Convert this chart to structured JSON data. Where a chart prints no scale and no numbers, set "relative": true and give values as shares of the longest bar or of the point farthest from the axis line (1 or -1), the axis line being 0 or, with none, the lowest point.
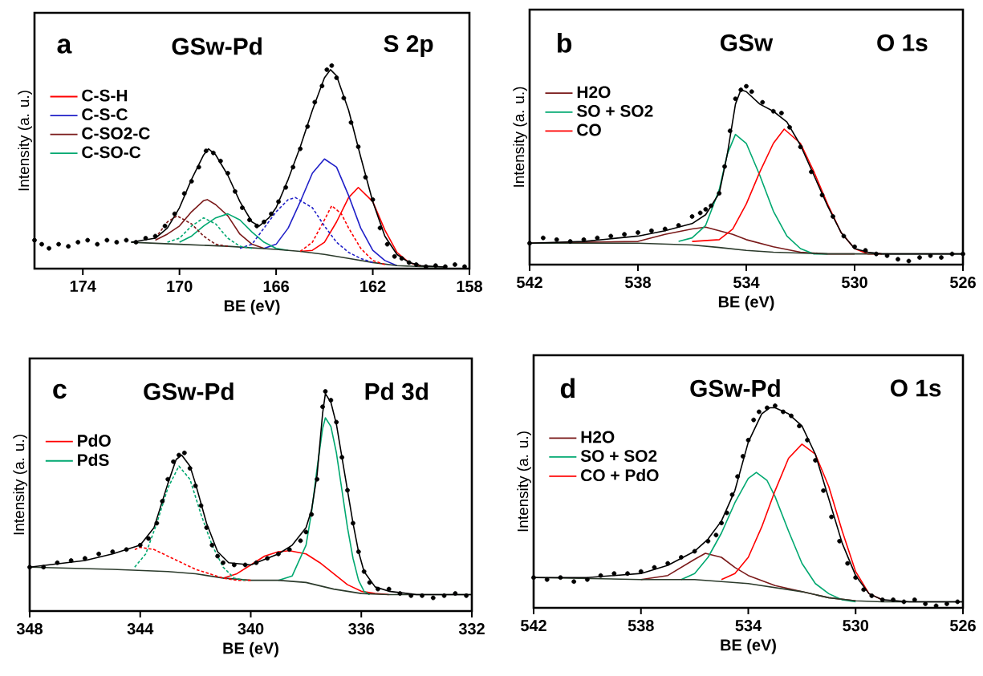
{
  "chart_data": [
    {
      "type": "line",
      "relative": true,
      "xlim": [
        176,
        158
      ],
      "xticks": [
        174,
        170,
        166,
        162,
        158
      ],
      "xlabel": "BE (eV)",
      "ylabel": "Intensity (a. u.)",
      "annotations": [
        "a",
        "GSw-Pd",
        "S 2p"
      ],
      "legend": "top left",
      "series": [
        {
          "name": "C-S-H",
          "type": "line",
          "color": "#ff0000",
          "line_style": "solid",
          "x": [
            165,
            164.5,
            164,
            163.5,
            163,
            162.6,
            162,
            161.5,
            161,
            160.5,
            160
          ],
          "values": [
            0.085,
            0.09,
            0.13,
            0.23,
            0.35,
            0.4,
            0.33,
            0.19,
            0.08,
            0.03,
            0.012
          ]
        },
        {
          "name": "C-S-C",
          "type": "line",
          "color": "#2020c8",
          "line_style": "solid",
          "x": [
            166.5,
            166,
            165.5,
            165,
            164.5,
            164,
            163.5,
            163,
            162.5,
            162,
            161.5,
            161
          ],
          "values": [
            0.1,
            0.12,
            0.2,
            0.33,
            0.47,
            0.54,
            0.5,
            0.36,
            0.2,
            0.09,
            0.04,
            0.015
          ]
        },
        {
          "name": "C-SO2-C",
          "type": "line",
          "color": "#7a1a1a",
          "line_style": "solid",
          "x": [
            171,
            170.5,
            170,
            169.5,
            169,
            168.85,
            168.5,
            168,
            167.5,
            167,
            166.5
          ],
          "values": [
            0.14,
            0.17,
            0.21,
            0.28,
            0.335,
            0.34,
            0.315,
            0.26,
            0.17,
            0.12,
            0.1
          ]
        },
        {
          "name": "C-SO-C",
          "type": "line",
          "color": "#00a870",
          "line_style": "solid",
          "x": [
            170,
            169.5,
            169,
            168.5,
            168,
            167.5,
            167,
            166.5,
            166,
            165.5
          ],
          "values": [
            0.13,
            0.16,
            0.21,
            0.25,
            0.27,
            0.24,
            0.18,
            0.13,
            0.1,
            0.09
          ]
        },
        {
          "type": "line",
          "color": "#ff0000",
          "line_style": "dashed",
          "x": [
            165,
            164.5,
            164,
            163.7,
            163.3,
            163,
            162.5,
            162,
            161.5
          ],
          "values": [
            0.085,
            0.13,
            0.24,
            0.31,
            0.27,
            0.2,
            0.1,
            0.04,
            0.02
          ]
        },
        {
          "type": "line",
          "color": "#2020c8",
          "line_style": "dashed",
          "x": [
            167.5,
            167,
            166.5,
            166,
            165.5,
            165.2,
            164.5,
            164,
            163.5,
            163,
            162.5,
            162
          ],
          "values": [
            0.1,
            0.12,
            0.2,
            0.28,
            0.34,
            0.35,
            0.3,
            0.21,
            0.13,
            0.08,
            0.05,
            0.03
          ]
        },
        {
          "type": "line",
          "color": "#7a1a1a",
          "line_style": "dashed",
          "x": [
            171,
            170.5,
            170.1,
            169.5,
            169,
            168.5,
            168
          ],
          "values": [
            0.15,
            0.23,
            0.26,
            0.22,
            0.16,
            0.12,
            0.11
          ]
        },
        {
          "type": "line",
          "color": "#00a870",
          "line_style": "dashed",
          "x": [
            170.5,
            170,
            169.5,
            169,
            168.5,
            168,
            167.5,
            167
          ],
          "values": [
            0.13,
            0.15,
            0.21,
            0.25,
            0.22,
            0.15,
            0.11,
            0.1
          ]
        },
        {
          "type": "line",
          "color": "#2b3a2b",
          "line_style": "solid",
          "x": [
            172,
            170,
            168,
            166,
            165,
            164,
            163,
            162,
            161,
            160,
            159
          ],
          "values": [
            0.13,
            0.12,
            0.11,
            0.095,
            0.085,
            0.07,
            0.05,
            0.03,
            0.015,
            0.01,
            0.008
          ]
        },
        {
          "type": "line",
          "color": "#000000",
          "line_style": "solid",
          "x": [
            172,
            171,
            170.5,
            170,
            169.5,
            169,
            168.8,
            168.5,
            168,
            167.5,
            167,
            166.7,
            166.3,
            166,
            165.5,
            165,
            164.5,
            164,
            163.75,
            163.5,
            163,
            162.5,
            162,
            161.5,
            161,
            160.5,
            160,
            159
          ],
          "values": [
            0.13,
            0.15,
            0.2,
            0.3,
            0.44,
            0.56,
            0.59,
            0.56,
            0.46,
            0.33,
            0.23,
            0.21,
            0.25,
            0.3,
            0.44,
            0.6,
            0.78,
            0.94,
            0.98,
            0.95,
            0.78,
            0.55,
            0.33,
            0.16,
            0.07,
            0.03,
            0.015,
            0.008
          ]
        },
        {
          "type": "scatter",
          "marker": "circle",
          "color": "#000000",
          "x": [
            176,
            175.7,
            175.4,
            175,
            174.6,
            174.2,
            173.8,
            173.4,
            173,
            172.6,
            172.2,
            171.8,
            171.4,
            171,
            170.6,
            170.2,
            169.8,
            169.5,
            169.2,
            168.9,
            168.6,
            168.3,
            168,
            167.7,
            167.4,
            167.1,
            166.8,
            166.5,
            166.2,
            165.9,
            165.6,
            165.3,
            165,
            164.7,
            164.4,
            164.1,
            163.9,
            163.7,
            163.5,
            163.2,
            162.9,
            162.6,
            162.3,
            162,
            161.7,
            161.4,
            161.1,
            160.8,
            160.5,
            160.2,
            159.8,
            159.4,
            159,
            158.6,
            158.2
          ],
          "values": [
            0.14,
            0.12,
            0.1,
            0.12,
            0.11,
            0.13,
            0.14,
            0.12,
            0.14,
            0.13,
            0.14,
            0.13,
            0.15,
            0.16,
            0.21,
            0.27,
            0.37,
            0.43,
            0.5,
            0.58,
            0.57,
            0.53,
            0.47,
            0.38,
            0.3,
            0.24,
            0.21,
            0.23,
            0.27,
            0.33,
            0.4,
            0.5,
            0.59,
            0.7,
            0.82,
            0.9,
            0.98,
            1.0,
            0.94,
            0.84,
            0.72,
            0.6,
            0.45,
            0.34,
            0.2,
            0.12,
            0.06,
            0.05,
            0.03,
            0.02,
            0.01,
            0.015,
            0.01,
            0.02,
            0.01
          ]
        }
      ]
    },
    {
      "type": "line",
      "relative": true,
      "xlim": [
        542,
        526
      ],
      "xticks": [
        542,
        538,
        534,
        530,
        526
      ],
      "xlabel": "BE (eV)",
      "ylabel": "Intensity (a. u.)",
      "annotations": [
        "b",
        "GSw",
        "O 1s"
      ],
      "legend": "top left",
      "series": [
        {
          "name": "H2O",
          "type": "line",
          "color": "#7a1a1a",
          "line_style": "solid",
          "x": [
            542,
            538,
            537,
            536,
            535.5,
            535,
            534.5,
            534,
            533,
            532,
            531,
            530
          ],
          "values": [
            0.12,
            0.13,
            0.17,
            0.2,
            0.21,
            0.19,
            0.17,
            0.14,
            0.1,
            0.07,
            0.06,
            0.06
          ]
        },
        {
          "name": "SO + SO2",
          "type": "line",
          "color": "#00a870",
          "line_style": "solid",
          "x": [
            536.5,
            536,
            535.5,
            535,
            534.7,
            534.4,
            534,
            533.5,
            533,
            532.5,
            532,
            531.5,
            531
          ],
          "values": [
            0.13,
            0.15,
            0.22,
            0.42,
            0.62,
            0.73,
            0.68,
            0.5,
            0.3,
            0.16,
            0.09,
            0.06,
            0.06
          ]
        },
        {
          "name": "CO",
          "type": "line",
          "color": "#ff0000",
          "line_style": "solid",
          "x": [
            536,
            535,
            534.5,
            534,
            533.5,
            533,
            532.6,
            532,
            531.5,
            531,
            530.5,
            530,
            529.5,
            529
          ],
          "values": [
            0.13,
            0.14,
            0.2,
            0.34,
            0.52,
            0.68,
            0.76,
            0.68,
            0.52,
            0.34,
            0.18,
            0.09,
            0.06,
            0.06
          ]
        },
        {
          "type": "line",
          "color": "#2b3a2b",
          "line_style": "solid",
          "x": [
            542,
            538,
            536,
            535,
            534,
            533,
            532,
            531,
            530,
            528,
            526
          ],
          "values": [
            0.12,
            0.12,
            0.11,
            0.096,
            0.08,
            0.07,
            0.065,
            0.06,
            0.06,
            0.06,
            0.06
          ]
        },
        {
          "type": "line",
          "color": "#000000",
          "line_style": "solid",
          "x": [
            542,
            540,
            538,
            537,
            536,
            535.5,
            535,
            534.7,
            534.4,
            534.2,
            534,
            533.5,
            533,
            532.5,
            532,
            531.5,
            531,
            530.5,
            530,
            529.5,
            529,
            528,
            526
          ],
          "values": [
            0.12,
            0.13,
            0.16,
            0.19,
            0.23,
            0.28,
            0.4,
            0.62,
            0.9,
            0.98,
            0.97,
            0.9,
            0.86,
            0.8,
            0.67,
            0.5,
            0.33,
            0.18,
            0.09,
            0.07,
            0.06,
            0.06,
            0.06
          ]
        },
        {
          "type": "scatter",
          "marker": "circle",
          "color": "#000000",
          "x": [
            542,
            541.5,
            541,
            540.5,
            540,
            539.5,
            539,
            538.5,
            538,
            537.5,
            537,
            536.5,
            536,
            535.7,
            535.5,
            535.3,
            535,
            534.8,
            534.6,
            534.4,
            534.2,
            534,
            533.8,
            533.4,
            533,
            532.7,
            532.4,
            532,
            531.6,
            531.2,
            530.8,
            530.4,
            530,
            529.6,
            529.2,
            528.8,
            528.4,
            528,
            527.6,
            527.2,
            526.8,
            526.4,
            526
          ],
          "values": [
            0.12,
            0.15,
            0.14,
            0.13,
            0.14,
            0.15,
            0.16,
            0.17,
            0.18,
            0.19,
            0.2,
            0.22,
            0.27,
            0.29,
            0.31,
            0.33,
            0.4,
            0.55,
            0.75,
            0.93,
            0.98,
            1.0,
            0.97,
            0.91,
            0.86,
            0.85,
            0.77,
            0.66,
            0.52,
            0.39,
            0.27,
            0.16,
            0.1,
            0.08,
            0.06,
            0.05,
            0.03,
            0.02,
            0.04,
            0.05,
            0.04,
            0.06,
            0.06
          ]
        }
      ]
    },
    {
      "type": "line",
      "relative": true,
      "xlim": [
        348,
        332
      ],
      "xticks": [
        348,
        344,
        340,
        336,
        332
      ],
      "xlabel": "BE (eV)",
      "ylabel": "Intensity (a. u.)",
      "annotations": [
        "c",
        "GSw-Pd",
        "Pd 3d"
      ],
      "legend": "top left",
      "series": [
        {
          "name": "PdO",
          "type": "line",
          "color": "#ff0000",
          "line_style": "solid",
          "x": [
            341,
            340.5,
            340,
            339.5,
            339,
            338.6,
            338,
            337.5,
            337,
            336.5,
            336,
            335.5,
            335
          ],
          "values": [
            0.15,
            0.17,
            0.21,
            0.25,
            0.27,
            0.275,
            0.26,
            0.22,
            0.17,
            0.12,
            0.09,
            0.08,
            0.075
          ]
        },
        {
          "name": "PdS",
          "type": "line",
          "color": "#00a870",
          "line_style": "solid",
          "x": [
            339,
            338.5,
            338,
            337.8,
            337.6,
            337.4,
            337.3,
            337.1,
            336.9,
            336.7,
            336.5,
            336.3,
            336.1,
            335.9,
            335.7
          ],
          "values": [
            0.14,
            0.16,
            0.3,
            0.45,
            0.65,
            0.83,
            0.88,
            0.84,
            0.72,
            0.55,
            0.38,
            0.24,
            0.14,
            0.09,
            0.075
          ]
        },
        {
          "type": "line",
          "color": "#ff0000",
          "line_style": "dashed",
          "x": [
            344.2,
            344,
            343.5,
            343,
            342.5,
            342,
            341.5,
            341,
            340.5,
            340
          ],
          "values": [
            0.28,
            0.29,
            0.28,
            0.25,
            0.22,
            0.19,
            0.17,
            0.15,
            0.14,
            0.14
          ]
        },
        {
          "type": "line",
          "color": "#00a870",
          "line_style": "dashed",
          "x": [
            344.2,
            343.8,
            343.4,
            343,
            342.6,
            342.2,
            341.8,
            341.4,
            341,
            340.6,
            340.2
          ],
          "values": [
            0.2,
            0.26,
            0.4,
            0.56,
            0.66,
            0.6,
            0.44,
            0.3,
            0.2,
            0.15,
            0.14
          ]
        },
        {
          "type": "line",
          "color": "#2b3a2b",
          "line_style": "solid",
          "x": [
            348,
            345,
            343,
            342,
            341,
            340,
            339,
            338,
            337,
            336,
            335,
            332
          ],
          "values": [
            0.2,
            0.19,
            0.18,
            0.17,
            0.15,
            0.14,
            0.14,
            0.13,
            0.1,
            0.08,
            0.075,
            0.075
          ]
        },
        {
          "type": "line",
          "color": "#000000",
          "line_style": "solid",
          "x": [
            348,
            346,
            345,
            344,
            343.5,
            343,
            342.7,
            342.5,
            342.2,
            342,
            341.6,
            341.2,
            340.8,
            340,
            339.4,
            339,
            338.5,
            338,
            337.8,
            337.6,
            337.4,
            337.3,
            337.1,
            336.9,
            336.7,
            336.5,
            336.3,
            336.1,
            335.9,
            335.5,
            335,
            334,
            332
          ],
          "values": [
            0.2,
            0.23,
            0.26,
            0.3,
            0.38,
            0.58,
            0.69,
            0.71,
            0.66,
            0.58,
            0.4,
            0.27,
            0.22,
            0.21,
            0.24,
            0.26,
            0.3,
            0.38,
            0.46,
            0.62,
            0.9,
            0.99,
            0.95,
            0.85,
            0.7,
            0.55,
            0.4,
            0.27,
            0.18,
            0.11,
            0.09,
            0.075,
            0.075
          ]
        },
        {
          "type": "scatter",
          "marker": "circle",
          "color": "#000000",
          "x": [
            348,
            347.5,
            347,
            346.5,
            346,
            345.5,
            345,
            344.5,
            344,
            343.7,
            343.4,
            343.2,
            343,
            342.8,
            342.6,
            342.4,
            342.2,
            342,
            341.8,
            341.6,
            341.4,
            341.2,
            341,
            340.6,
            340.2,
            339.8,
            339.4,
            339,
            338.6,
            338.2,
            338,
            337.8,
            337.6,
            337.4,
            337.3,
            337.1,
            336.9,
            336.7,
            336.5,
            336.3,
            336.1,
            335.9,
            335.7,
            335.4,
            335,
            334.6,
            334.2,
            333.8,
            333.4,
            333,
            332.6,
            332.2
          ],
          "values": [
            0.2,
            0.2,
            0.22,
            0.23,
            0.24,
            0.26,
            0.27,
            0.28,
            0.3,
            0.33,
            0.4,
            0.5,
            0.6,
            0.68,
            0.71,
            0.72,
            0.65,
            0.57,
            0.48,
            0.38,
            0.3,
            0.25,
            0.22,
            0.21,
            0.21,
            0.22,
            0.24,
            0.26,
            0.28,
            0.32,
            0.36,
            0.44,
            0.6,
            0.93,
            1.0,
            0.96,
            0.86,
            0.7,
            0.55,
            0.4,
            0.27,
            0.18,
            0.13,
            0.1,
            0.1,
            0.08,
            0.07,
            0.07,
            0.06,
            0.07,
            0.08,
            0.07
          ]
        }
      ]
    },
    {
      "type": "line",
      "relative": true,
      "xlim": [
        542,
        526
      ],
      "xticks": [
        542,
        538,
        534,
        530,
        526
      ],
      "xlabel": "BE (eV)",
      "ylabel": "Intensity (a. u.)",
      "annotations": [
        "d",
        "GSw-Pd",
        "O 1s"
      ],
      "legend": "top left",
      "series": [
        {
          "name": "H2O",
          "type": "line",
          "color": "#7a1a1a",
          "line_style": "solid",
          "x": [
            538,
            537,
            536,
            535.6,
            535,
            534.5,
            534,
            533,
            532,
            531,
            530
          ],
          "values": [
            0.14,
            0.16,
            0.24,
            0.27,
            0.25,
            0.2,
            0.16,
            0.11,
            0.08,
            0.05,
            0.035
          ]
        },
        {
          "name": "SO + SO2",
          "type": "line",
          "color": "#00a870",
          "line_style": "solid",
          "x": [
            536.5,
            536,
            535.5,
            535,
            534.5,
            534,
            533.7,
            533.3,
            533,
            532.5,
            532,
            531.5,
            531,
            530.5,
            530
          ],
          "values": [
            0.14,
            0.17,
            0.25,
            0.37,
            0.52,
            0.64,
            0.67,
            0.63,
            0.55,
            0.38,
            0.22,
            0.12,
            0.07,
            0.04,
            0.03
          ]
        },
        {
          "name": "CO + PdO",
          "type": "line",
          "color": "#ff0000",
          "line_style": "solid",
          "x": [
            535,
            534.5,
            534,
            533.5,
            533,
            532.5,
            532,
            531.5,
            531,
            530.5,
            530,
            529.5,
            529
          ],
          "values": [
            0.14,
            0.17,
            0.25,
            0.4,
            0.58,
            0.74,
            0.81,
            0.76,
            0.6,
            0.38,
            0.18,
            0.07,
            0.04
          ]
        },
        {
          "type": "line",
          "color": "#2b3a2b",
          "line_style": "solid",
          "x": [
            542,
            538,
            536,
            535,
            534,
            533,
            532,
            531,
            530,
            529,
            526
          ],
          "values": [
            0.15,
            0.14,
            0.14,
            0.13,
            0.12,
            0.1,
            0.08,
            0.05,
            0.035,
            0.03,
            0.03
          ]
        },
        {
          "type": "line",
          "color": "#000000",
          "line_style": "solid",
          "x": [
            542,
            540,
            538,
            537,
            536,
            535.5,
            535,
            534.5,
            534,
            533.5,
            533.2,
            533,
            532.5,
            532,
            531.5,
            531,
            530.5,
            530,
            529.5,
            529,
            528,
            526
          ],
          "values": [
            0.15,
            0.15,
            0.17,
            0.21,
            0.28,
            0.34,
            0.43,
            0.58,
            0.82,
            0.96,
            0.99,
            0.99,
            0.96,
            0.9,
            0.76,
            0.54,
            0.32,
            0.16,
            0.07,
            0.04,
            0.03,
            0.03
          ]
        },
        {
          "type": "scatter",
          "marker": "circle",
          "color": "#000000",
          "x": [
            542,
            541.5,
            541,
            540.5,
            540,
            539.5,
            539,
            538.5,
            538,
            537.5,
            537,
            536.5,
            536,
            535.5,
            535.2,
            535,
            534.8,
            534.6,
            534.4,
            534.2,
            534,
            533.8,
            533.6,
            533.3,
            533,
            532.7,
            532.4,
            532.1,
            531.8,
            531.5,
            531.2,
            530.9,
            530.6,
            530.3,
            530,
            529.7,
            529.4,
            529,
            528.6,
            528.2,
            527.8,
            527.4,
            527,
            526.6,
            526.2
          ],
          "values": [
            0.15,
            0.14,
            0.15,
            0.13,
            0.14,
            0.16,
            0.17,
            0.17,
            0.18,
            0.2,
            0.22,
            0.25,
            0.28,
            0.33,
            0.36,
            0.42,
            0.47,
            0.56,
            0.65,
            0.75,
            0.83,
            0.93,
            0.97,
            0.99,
            1.0,
            0.97,
            0.95,
            0.9,
            0.83,
            0.73,
            0.58,
            0.45,
            0.33,
            0.22,
            0.15,
            0.09,
            0.06,
            0.04,
            0.04,
            0.03,
            0.04,
            0.02,
            0.01,
            0.02,
            0.03
          ]
        }
      ]
    }
  ]
}
